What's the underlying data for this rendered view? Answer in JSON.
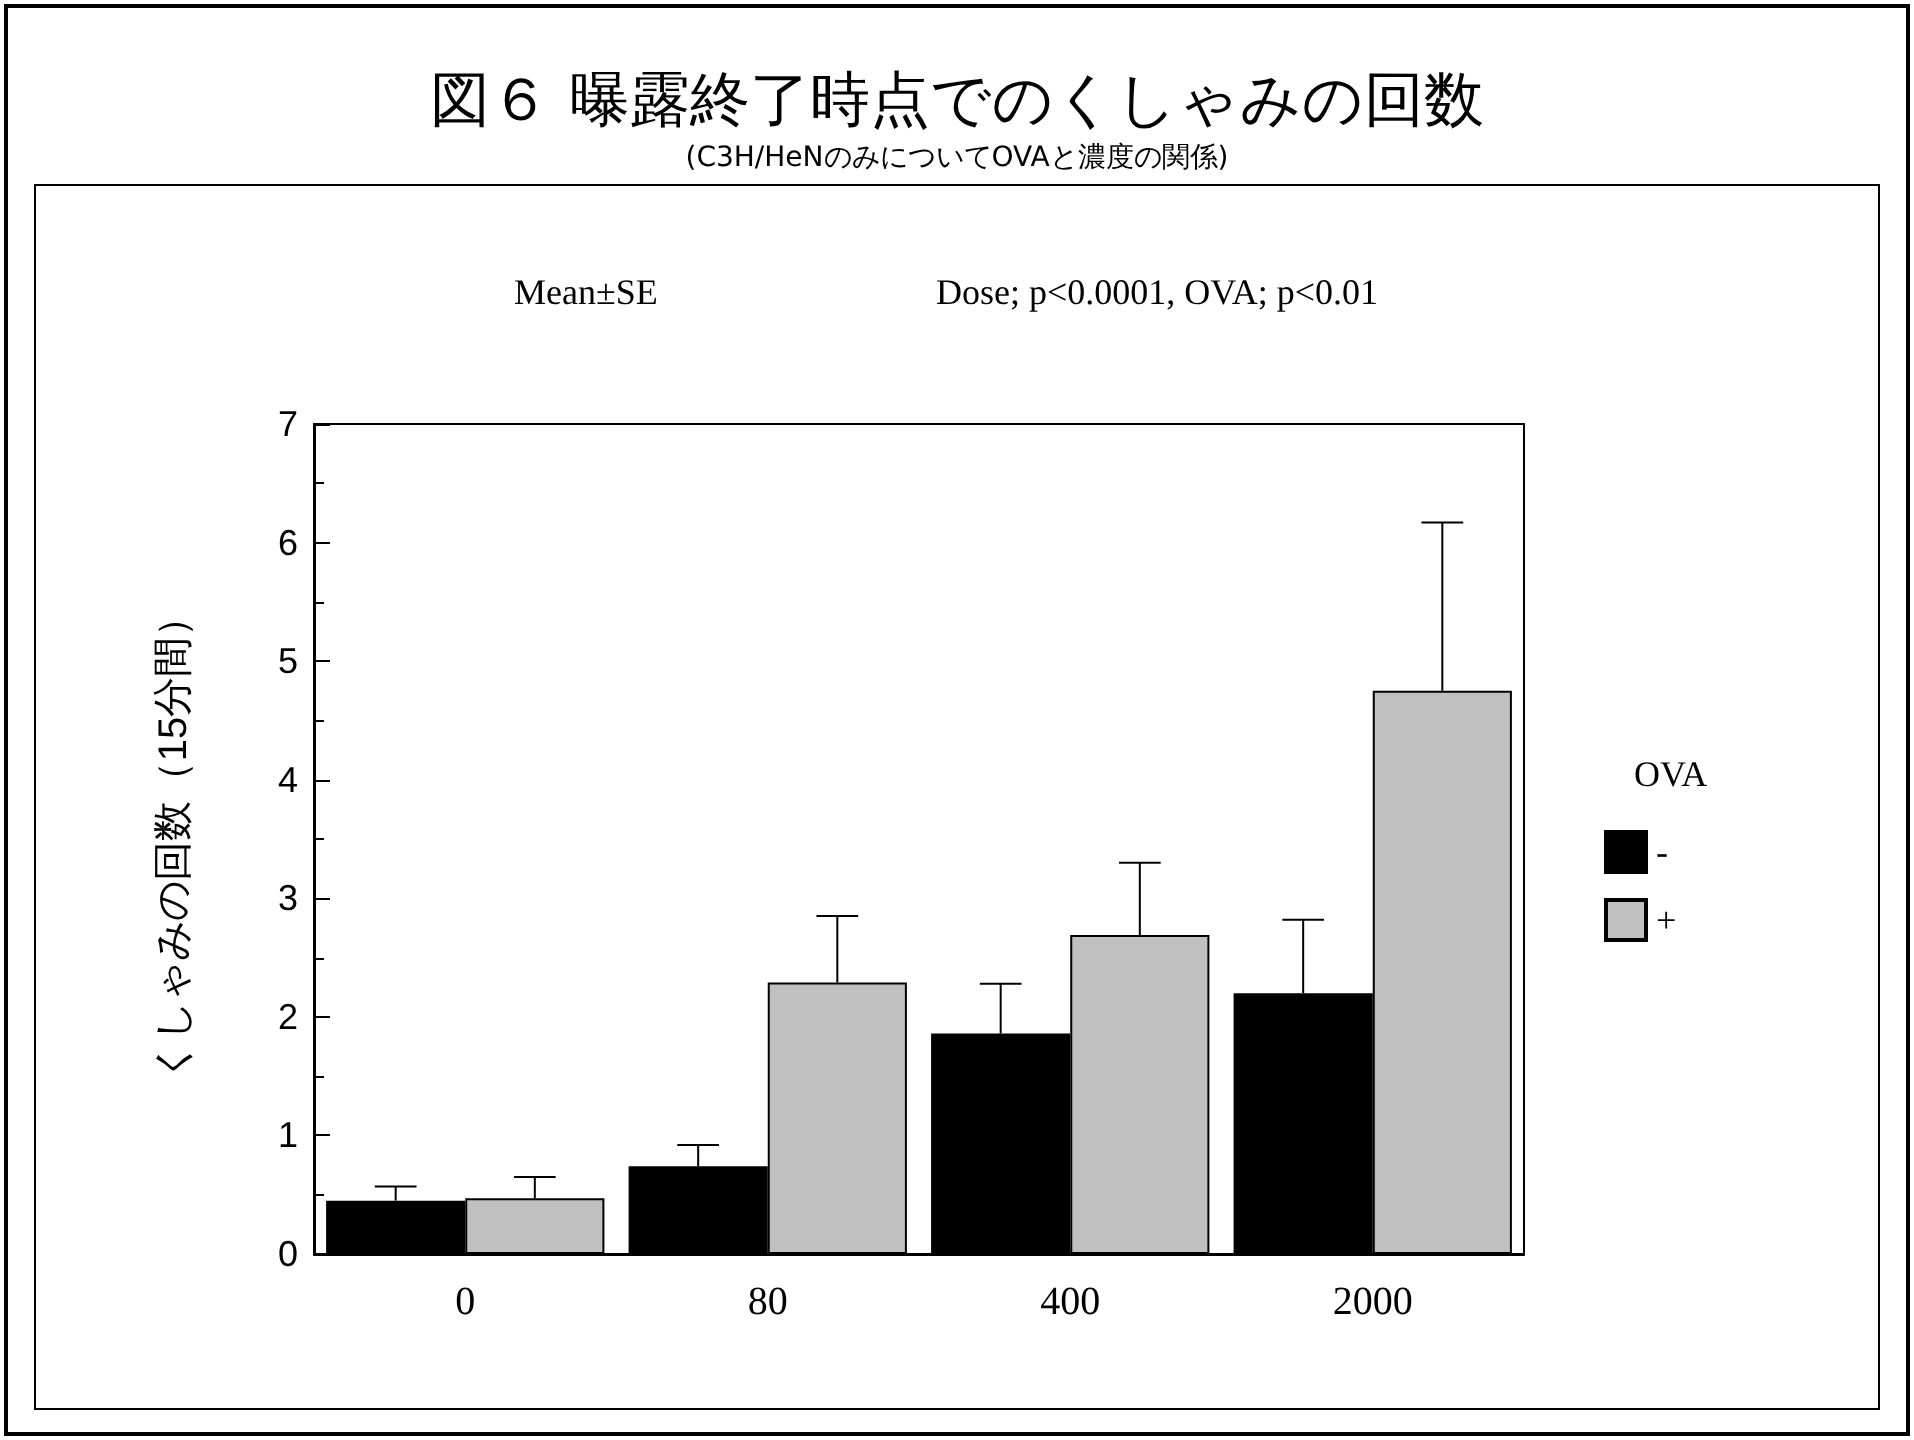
{
  "chart_data": {
    "type": "bar",
    "title": "図６ 曝露終了時点でのくしゃみの回数",
    "subtitle": "(C3H/HeNのみについてOVAと濃度の関係)",
    "ylabel": "くしゃみの回数（15分間）",
    "legend_title": "OVA",
    "annotations": [
      "Mean±SE",
      "Dose; p<0.0001, OVA; p<0.01"
    ],
    "categories": [
      "0",
      "80",
      "400",
      "2000"
    ],
    "series": [
      {
        "name": "-",
        "color": "#000000",
        "values": [
          0.45,
          0.74,
          1.86,
          2.2
        ],
        "errors": [
          [
            0.45,
            0.57
          ],
          [
            0.74,
            0.92
          ],
          [
            1.86,
            2.28
          ],
          [
            2.2,
            2.82
          ]
        ]
      },
      {
        "name": "+",
        "color": "#c0c0c0",
        "values": [
          0.47,
          2.29,
          2.69,
          4.75
        ],
        "errors": [
          [
            0.47,
            0.65
          ],
          [
            2.29,
            2.85
          ],
          [
            2.69,
            3.3
          ],
          [
            4.75,
            6.17
          ]
        ]
      }
    ],
    "ylim": [
      0,
      7
    ],
    "yticks": [
      0,
      1,
      2,
      3,
      4,
      5,
      6,
      7
    ],
    "legend": "right"
  }
}
